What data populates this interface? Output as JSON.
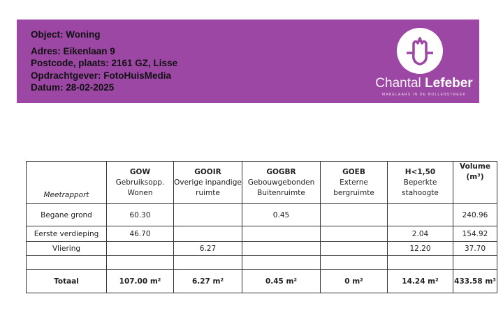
{
  "header": {
    "object": "Object: Woning",
    "adres": "Adres: Eikenlaan 9",
    "postcode": "Postcode, plaats: 2161 GZ, Lisse",
    "opdrachtgever": "Opdrachtgever: FotoHuisMedia",
    "datum": "Datum: 28-02-2025",
    "background_color": "#9b47a3"
  },
  "logo": {
    "first": "Chantal",
    "last": "Lefeber",
    "tagline": "MAKELAARS IN DE BOLLENSTREEK"
  },
  "table": {
    "label": "Meetrapport",
    "columns": [
      {
        "code": "GOW",
        "line1": "Gebruiksopp.",
        "line2": "Wonen"
      },
      {
        "code": "GOOIR",
        "line1": "Overige inpandige",
        "line2": "ruimte"
      },
      {
        "code": "GOGBR",
        "line1": "Gebouwgebonden",
        "line2": "Buitenruimte"
      },
      {
        "code": "GOEB",
        "line1": "Externe",
        "line2": "bergruimte"
      },
      {
        "code": "H<1,50",
        "line1": "Beperkte",
        "line2": "stahoogte"
      },
      {
        "code": "Volume",
        "line1": "(m³)",
        "line2": ""
      }
    ],
    "rows": [
      {
        "name": "Begane grond",
        "values": [
          "60.30",
          "",
          "0.45",
          "",
          "",
          "240.96"
        ]
      },
      {
        "name": "Eerste verdieping",
        "values": [
          "46.70",
          "",
          "",
          "",
          "2.04",
          "154.92"
        ]
      },
      {
        "name": "Vliering",
        "values": [
          "",
          "6.27",
          "",
          "",
          "12.20",
          "37.70"
        ]
      },
      {
        "name": "",
        "values": [
          "",
          "",
          "",
          "",
          "",
          ""
        ]
      }
    ],
    "total": {
      "name": "Totaal",
      "values": [
        "107.00 m²",
        "6.27 m²",
        "0.45 m²",
        "0 m²",
        "14.24 m²",
        "433.58 m³"
      ]
    }
  }
}
